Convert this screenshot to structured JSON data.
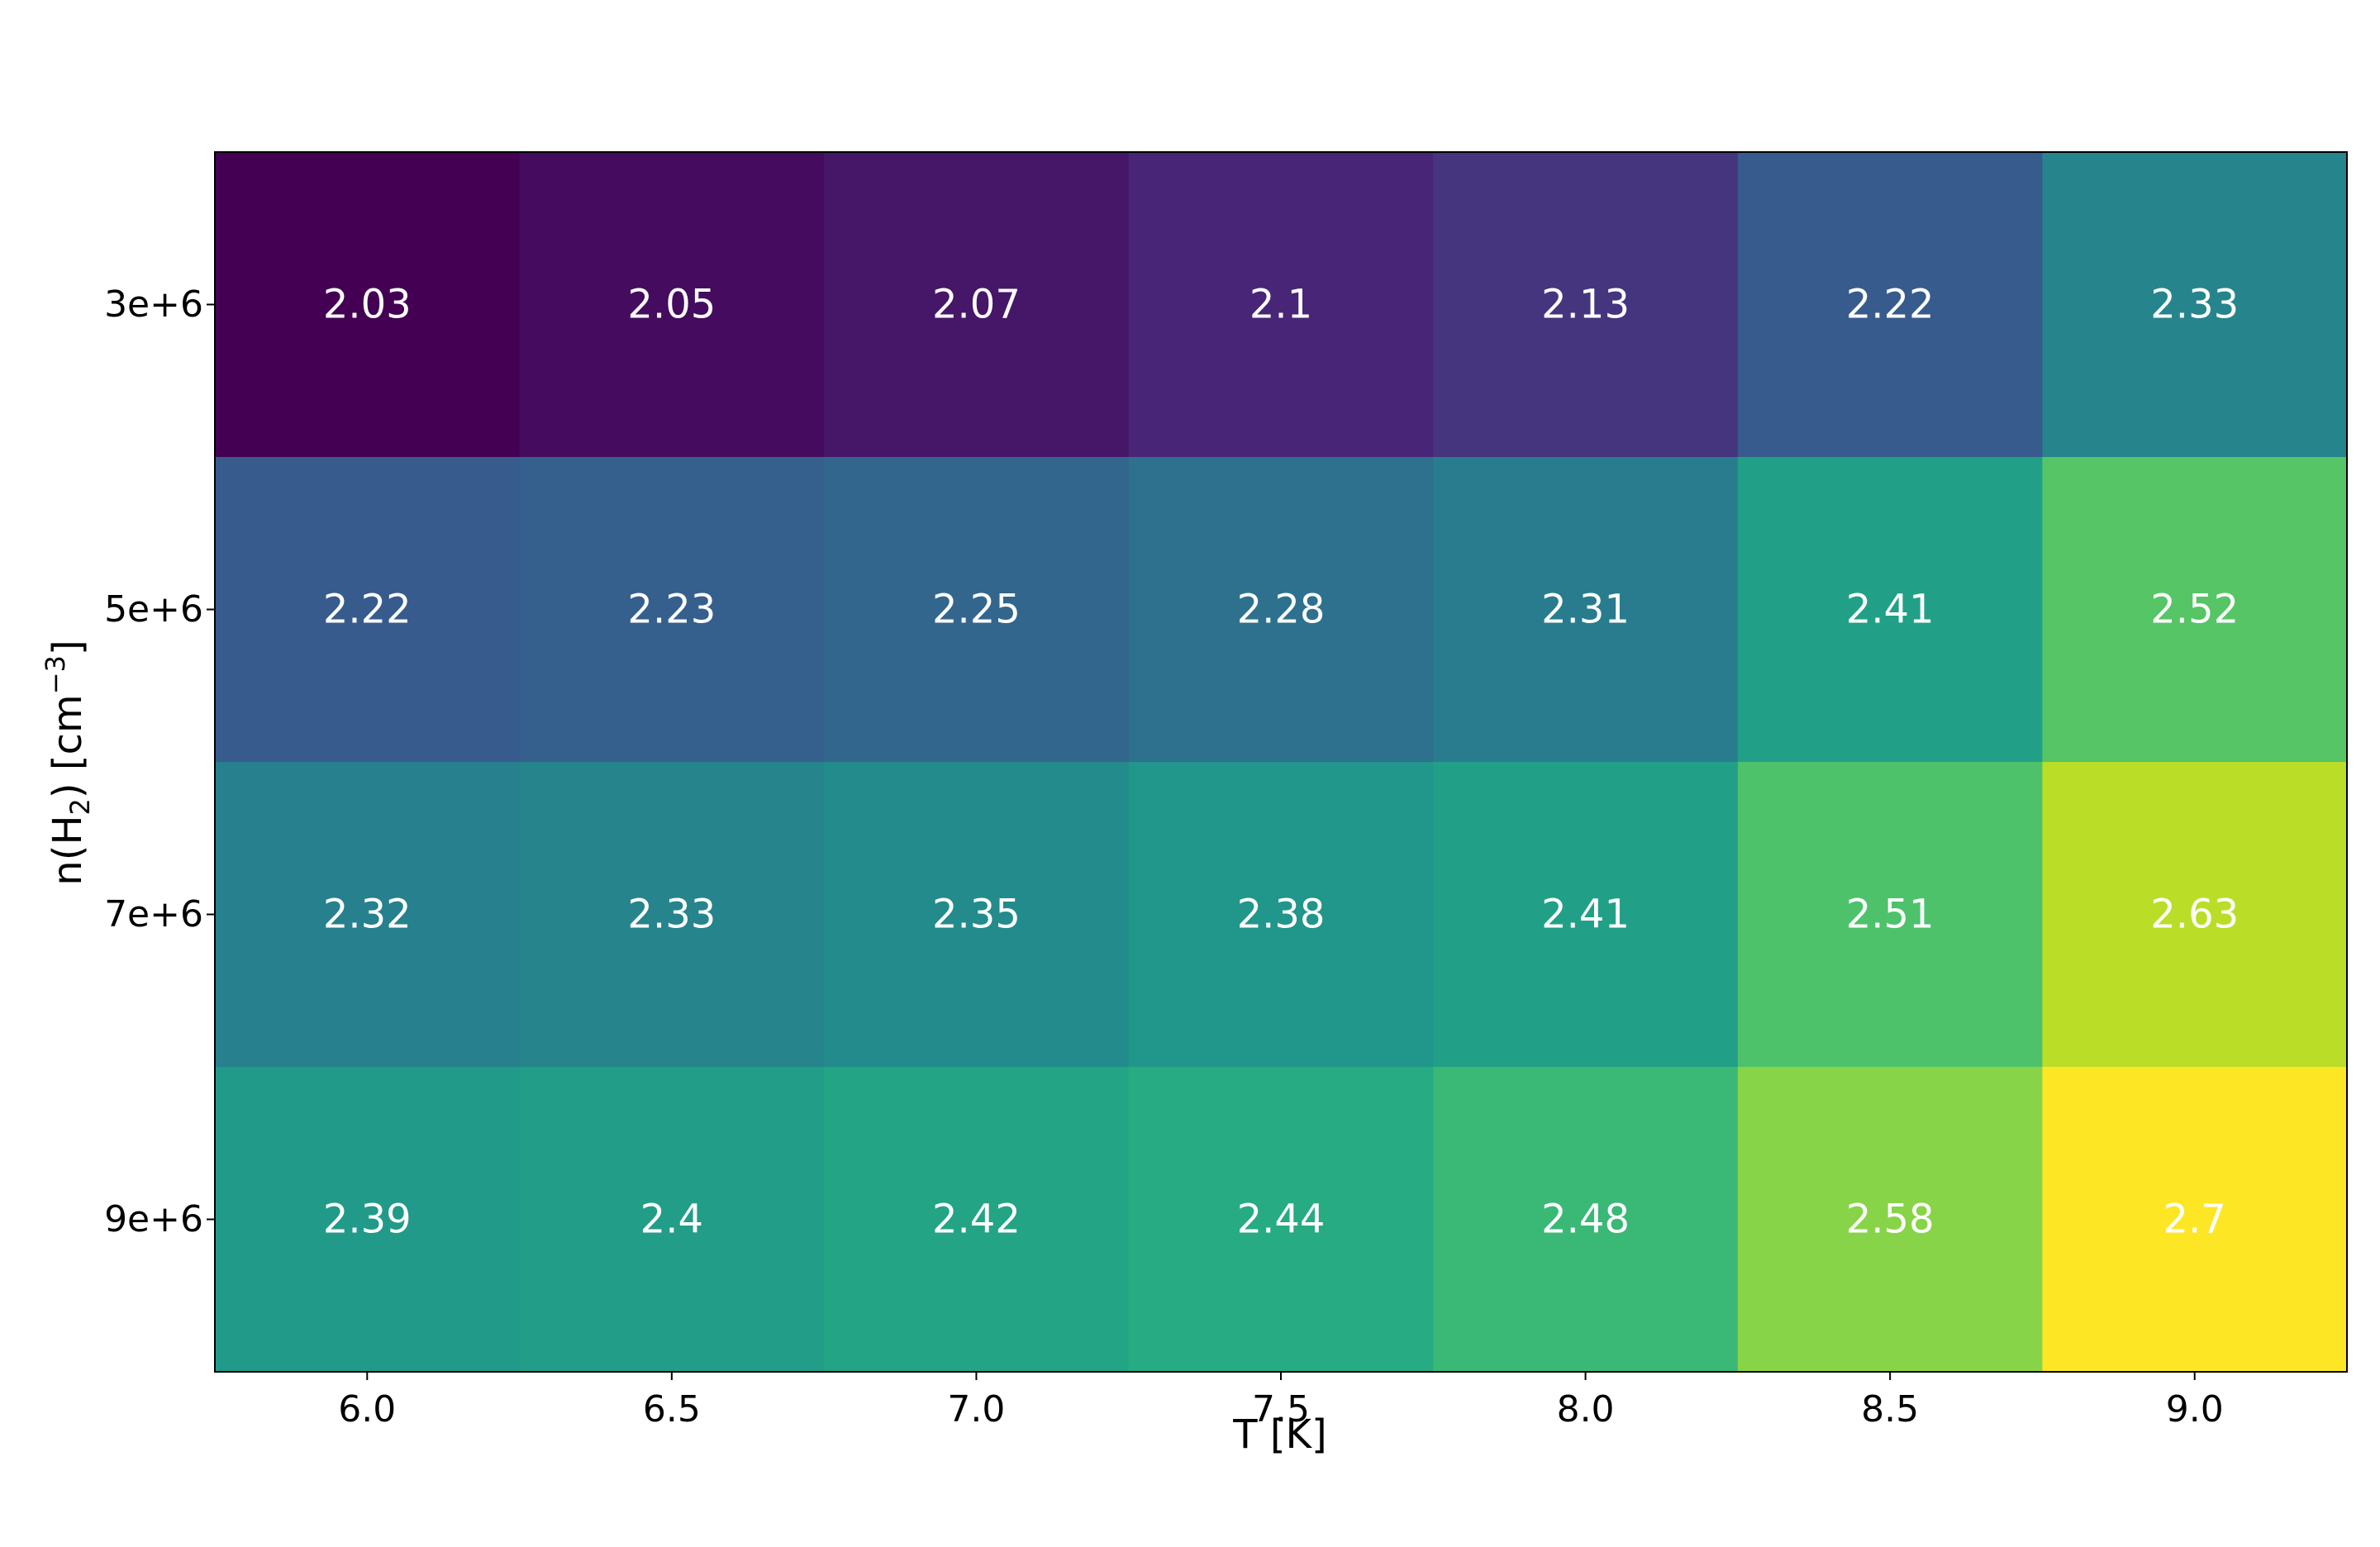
{
  "chart_data": {
    "type": "heatmap",
    "title": "",
    "xlabel": "T [K]",
    "ylabel": {
      "prefix": "n(H",
      "sub": "2",
      "mid": ") [cm",
      "sup": "−3",
      "suffix": "]"
    },
    "x_categories": [
      "6.0",
      "6.5",
      "7.0",
      "7.5",
      "8.0",
      "8.5",
      "9.0"
    ],
    "y_categories": [
      "3e+6",
      "5e+6",
      "7e+6",
      "9e+6"
    ],
    "values": [
      [
        2.03,
        2.05,
        2.07,
        2.1,
        2.13,
        2.22,
        2.33
      ],
      [
        2.22,
        2.23,
        2.25,
        2.28,
        2.31,
        2.41,
        2.52
      ],
      [
        2.32,
        2.33,
        2.35,
        2.38,
        2.41,
        2.51,
        2.63
      ],
      [
        2.39,
        2.4,
        2.42,
        2.44,
        2.48,
        2.58,
        2.7
      ]
    ],
    "cell_labels": [
      [
        "2.03",
        "2.05",
        "2.07",
        "2.1",
        "2.13",
        "2.22",
        "2.33"
      ],
      [
        "2.22",
        "2.23",
        "2.25",
        "2.28",
        "2.31",
        "2.41",
        "2.52"
      ],
      [
        "2.32",
        "2.33",
        "2.35",
        "2.38",
        "2.41",
        "2.51",
        "2.63"
      ],
      [
        "2.39",
        "2.4",
        "2.42",
        "2.44",
        "2.48",
        "2.58",
        "2.7"
      ]
    ],
    "colormap": "viridis",
    "value_range": [
      2.03,
      2.7
    ],
    "cell_text_color": "#ffffff"
  }
}
